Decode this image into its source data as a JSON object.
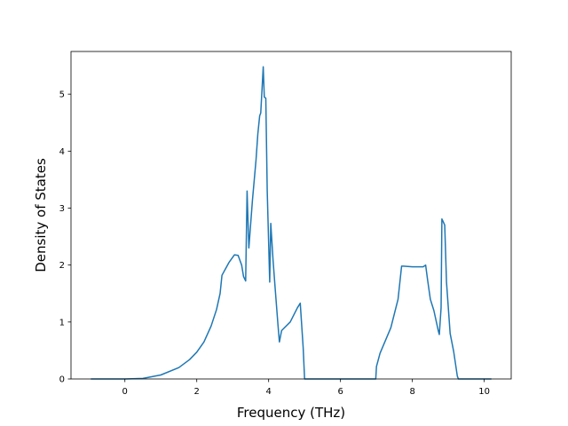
{
  "chart_data": {
    "type": "line",
    "xlabel": "Frequency (THz)",
    "ylabel": "Density of States",
    "xlim": [
      -1.5,
      10.75
    ],
    "ylim": [
      0,
      5.75
    ],
    "xticks": [
      0,
      2,
      4,
      6,
      8,
      10
    ],
    "yticks": [
      0,
      1,
      2,
      3,
      4,
      5
    ],
    "grid": false,
    "series": [
      {
        "color": "#1f77b4",
        "x": [
          -0.95,
          0.0,
          0.5,
          1.0,
          1.5,
          1.8,
          2.0,
          2.2,
          2.4,
          2.55,
          2.65,
          2.7,
          2.9,
          3.05,
          3.15,
          3.25,
          3.3,
          3.36,
          3.4,
          3.45,
          3.55,
          3.65,
          3.7,
          3.75,
          3.78,
          3.85,
          3.88,
          3.92,
          3.96,
          4.03,
          4.06,
          4.12,
          4.18,
          4.26,
          4.3,
          4.36,
          4.6,
          4.8,
          4.88,
          4.96,
          5.0,
          6.98,
          7.0,
          7.1,
          7.4,
          7.6,
          7.7,
          7.75,
          8.0,
          8.3,
          8.37,
          8.42,
          8.5,
          8.6,
          8.72,
          8.75,
          8.8,
          8.82,
          8.85,
          8.9,
          8.95,
          9.05,
          9.15,
          9.25,
          9.28,
          10.2
        ],
        "y": [
          0.0,
          0.0,
          0.01,
          0.07,
          0.2,
          0.34,
          0.47,
          0.65,
          0.93,
          1.22,
          1.5,
          1.82,
          2.05,
          2.18,
          2.17,
          2.0,
          1.8,
          1.72,
          3.3,
          2.3,
          3.15,
          3.85,
          4.3,
          4.62,
          4.67,
          5.48,
          4.95,
          4.93,
          3.3,
          1.7,
          2.73,
          2.1,
          1.6,
          0.95,
          0.65,
          0.85,
          1.0,
          1.25,
          1.33,
          0.55,
          0.0,
          0.0,
          0.22,
          0.45,
          0.9,
          1.4,
          1.98,
          1.98,
          1.97,
          1.97,
          2.0,
          1.75,
          1.4,
          1.2,
          0.85,
          0.78,
          1.25,
          2.81,
          2.77,
          2.7,
          1.7,
          0.8,
          0.48,
          0.05,
          0.0,
          0.0
        ]
      }
    ]
  }
}
